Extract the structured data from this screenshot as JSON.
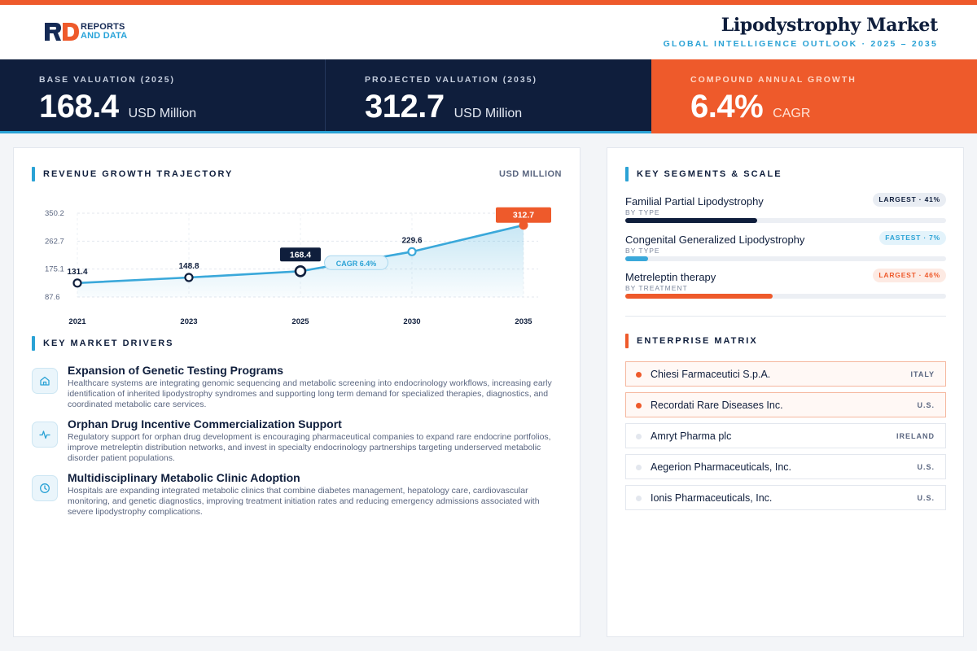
{
  "brand": {
    "line1": "REPORTS",
    "line2": "AND DATA"
  },
  "header": {
    "title": "Lipodystrophy Market",
    "subtitle": "GLOBAL INTELLIGENCE OUTLOOK  ·  2025 – 2035"
  },
  "kpis": [
    {
      "label": "BASE VALUATION (2025)",
      "value": "168.4",
      "unit": "USD Million"
    },
    {
      "label": "PROJECTED VALUATION (2035)",
      "value": "312.7",
      "unit": "USD Million"
    },
    {
      "label": "COMPOUND ANNUAL GROWTH",
      "value": "6.4%",
      "unit": "CAGR"
    }
  ],
  "chart_section": {
    "title": "REVENUE GROWTH TRAJECTORY",
    "unit_label": "USD MILLION"
  },
  "chart_data": {
    "type": "area",
    "x": [
      "2021",
      "2023",
      "2025",
      "2030",
      "2035"
    ],
    "values": [
      131.4,
      148.8,
      168.4,
      229.6,
      312.7
    ],
    "data_labels": [
      "131.4",
      "148.8",
      "168.4",
      "229.6",
      "312.7"
    ],
    "y_ticks": [
      350.2,
      262.7,
      175.1,
      87.6
    ],
    "ylim": [
      87.6,
      350.2
    ],
    "annotation": "CAGR 6.4%",
    "grid": true,
    "colors": {
      "line": "#3aa8da",
      "highlight_base": "#0f1e3c",
      "highlight_end": "#ee5a2b"
    }
  },
  "drivers_section": {
    "title": "KEY MARKET DRIVERS",
    "items": [
      {
        "icon": "home-icon",
        "title": "Expansion of Genetic Testing Programs",
        "desc": "Healthcare systems are integrating genomic sequencing and metabolic screening into endocrinology workflows, increasing early identification of inherited lipodystrophy syndromes and supporting long term demand for specialized therapies, diagnostics, and coordinated metabolic care services."
      },
      {
        "icon": "pulse-icon",
        "title": "Orphan Drug Incentive Commercialization Support",
        "desc": "Regulatory support for orphan drug development is encouraging pharmaceutical companies to expand rare endocrine portfolios, improve metreleptin distribution networks, and invest in specialty endocrinology partnerships targeting underserved metabolic disorder patient populations."
      },
      {
        "icon": "clock-icon",
        "title": "Multidisciplinary Metabolic Clinic Adoption",
        "desc": "Hospitals are expanding integrated metabolic clinics that combine diabetes management, hepatology care, cardiovascular monitoring, and genetic diagnostics, improving treatment initiation rates and reducing emergency admissions associated with severe lipodystrophy complications."
      }
    ]
  },
  "segments_section": {
    "title": "KEY SEGMENTS & SCALE",
    "items": [
      {
        "name": "Familial Partial Lipodystrophy",
        "by": "BY TYPE",
        "badge": "LARGEST · 41%",
        "share": 41,
        "color": "#0f1e3c"
      },
      {
        "name": "Congenital Generalized Lipodystrophy",
        "by": "BY TYPE",
        "badge": "FASTEST · 7%",
        "share": 7,
        "color": "#3aa8da"
      },
      {
        "name": "Metreleptin therapy",
        "by": "BY TREATMENT",
        "badge": "LARGEST · 46%",
        "share": 46,
        "color": "#ee5a2b"
      }
    ]
  },
  "enterprise_section": {
    "title": "ENTERPRISE MATRIX",
    "items": [
      {
        "name": "Chiesi Farmaceutici S.p.A.",
        "country": "ITALY"
      },
      {
        "name": "Recordati Rare Diseases Inc.",
        "country": "U.S."
      },
      {
        "name": "Amryt Pharma plc",
        "country": "IRELAND"
      },
      {
        "name": "Aegerion Pharmaceuticals, Inc.",
        "country": "U.S."
      },
      {
        "name": "Ionis Pharmaceuticals, Inc.",
        "country": "U.S."
      }
    ]
  }
}
